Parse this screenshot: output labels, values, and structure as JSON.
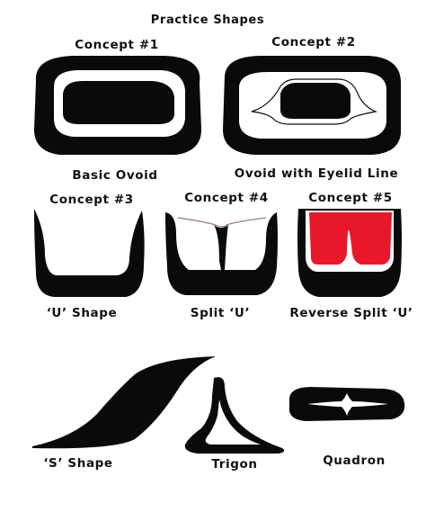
{
  "title": "Practice Shapes",
  "colors": {
    "ink": "#0a0a0a",
    "background": "#ffffff",
    "red_fill": "#e8182a",
    "liner": "#9a7a8a"
  },
  "shapes": [
    {
      "concept": "Concept #1",
      "caption": "Basic Ovoid"
    },
    {
      "concept": "Concept #2",
      "caption": "Ovoid with Eyelid Line"
    },
    {
      "concept": "Concept #3",
      "caption": "‘U’ Shape"
    },
    {
      "concept": "Concept #4",
      "caption": "Split ‘U’"
    },
    {
      "concept": "Concept #5",
      "caption": "Reverse Split ‘U’"
    },
    {
      "caption": "‘S’ Shape"
    },
    {
      "caption": "Trigon"
    },
    {
      "caption": "Quadron"
    }
  ]
}
